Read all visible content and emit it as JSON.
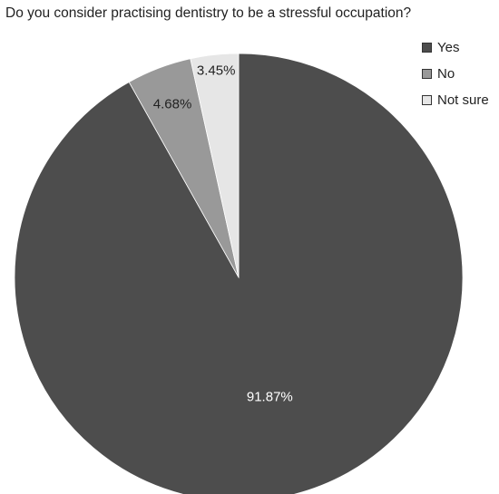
{
  "chart_data": {
    "type": "pie",
    "title": "Do you consider practising dentistry to be a stressful occupation?",
    "categories": [
      "Yes",
      "No",
      "Not sure"
    ],
    "values": [
      91.87,
      4.68,
      3.45
    ],
    "labels": [
      "91.87%",
      "4.68%",
      "3.45%"
    ],
    "colors": [
      "#4d4d4d",
      "#999999",
      "#e6e6e6"
    ],
    "label_colors": [
      "#ffffff",
      "#222222",
      "#222222"
    ],
    "start_angle_deg": 0,
    "direction": "clockwise",
    "legend_position": "top-right"
  }
}
